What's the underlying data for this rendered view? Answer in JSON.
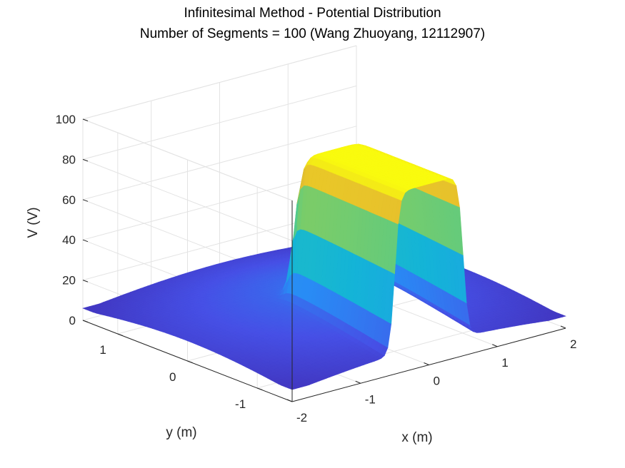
{
  "chart_data": {
    "type": "surface",
    "title": "Infinitesimal Method - Potential Distribution",
    "subtitle": "Number of Segments = 100 (Wang Zhuoyang, 12112907)",
    "xlabel": "x (m)",
    "ylabel": "y (m)",
    "zlabel": "V (V)",
    "xlim": [
      -2,
      2
    ],
    "ylim": [
      -1.5,
      1.5
    ],
    "zlim": [
      0,
      100
    ],
    "x_ticks": [
      "-2",
      "-1",
      "0",
      "1",
      "2"
    ],
    "y_ticks": [
      "-1",
      "0",
      "1"
    ],
    "z_ticks": [
      "0",
      "20",
      "40",
      "60",
      "80",
      "100"
    ],
    "grid": true,
    "colormap": "parula",
    "colors": {
      "low": "#3E26A8",
      "mid": "#2DB7BF",
      "high": "#F9FB0E"
    },
    "surface_description": {
      "plateau_value": 90,
      "plateau_x_range": [
        -0.5,
        0.5
      ],
      "plateau_y_range": [
        -1.5,
        0.0
      ],
      "edge_value_at_corners": 6
    }
  }
}
